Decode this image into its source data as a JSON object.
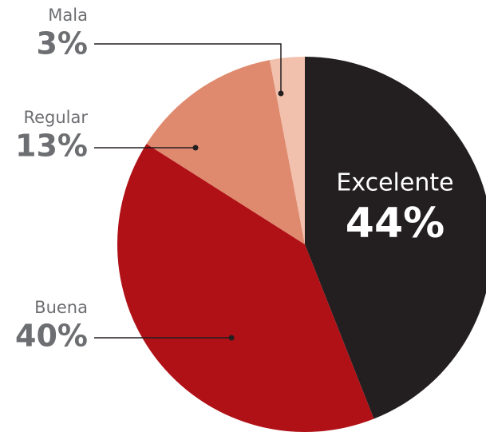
{
  "chart_data": {
    "type": "pie",
    "categories": [
      "Excelente",
      "Buena",
      "Regular",
      "Mala"
    ],
    "values": [
      44,
      40,
      13,
      3
    ],
    "value_labels": [
      "44%",
      "40%",
      "13%",
      "3%"
    ],
    "colors": [
      "#231f20",
      "#b01117",
      "#df8a6e",
      "#f2c1ad"
    ]
  }
}
